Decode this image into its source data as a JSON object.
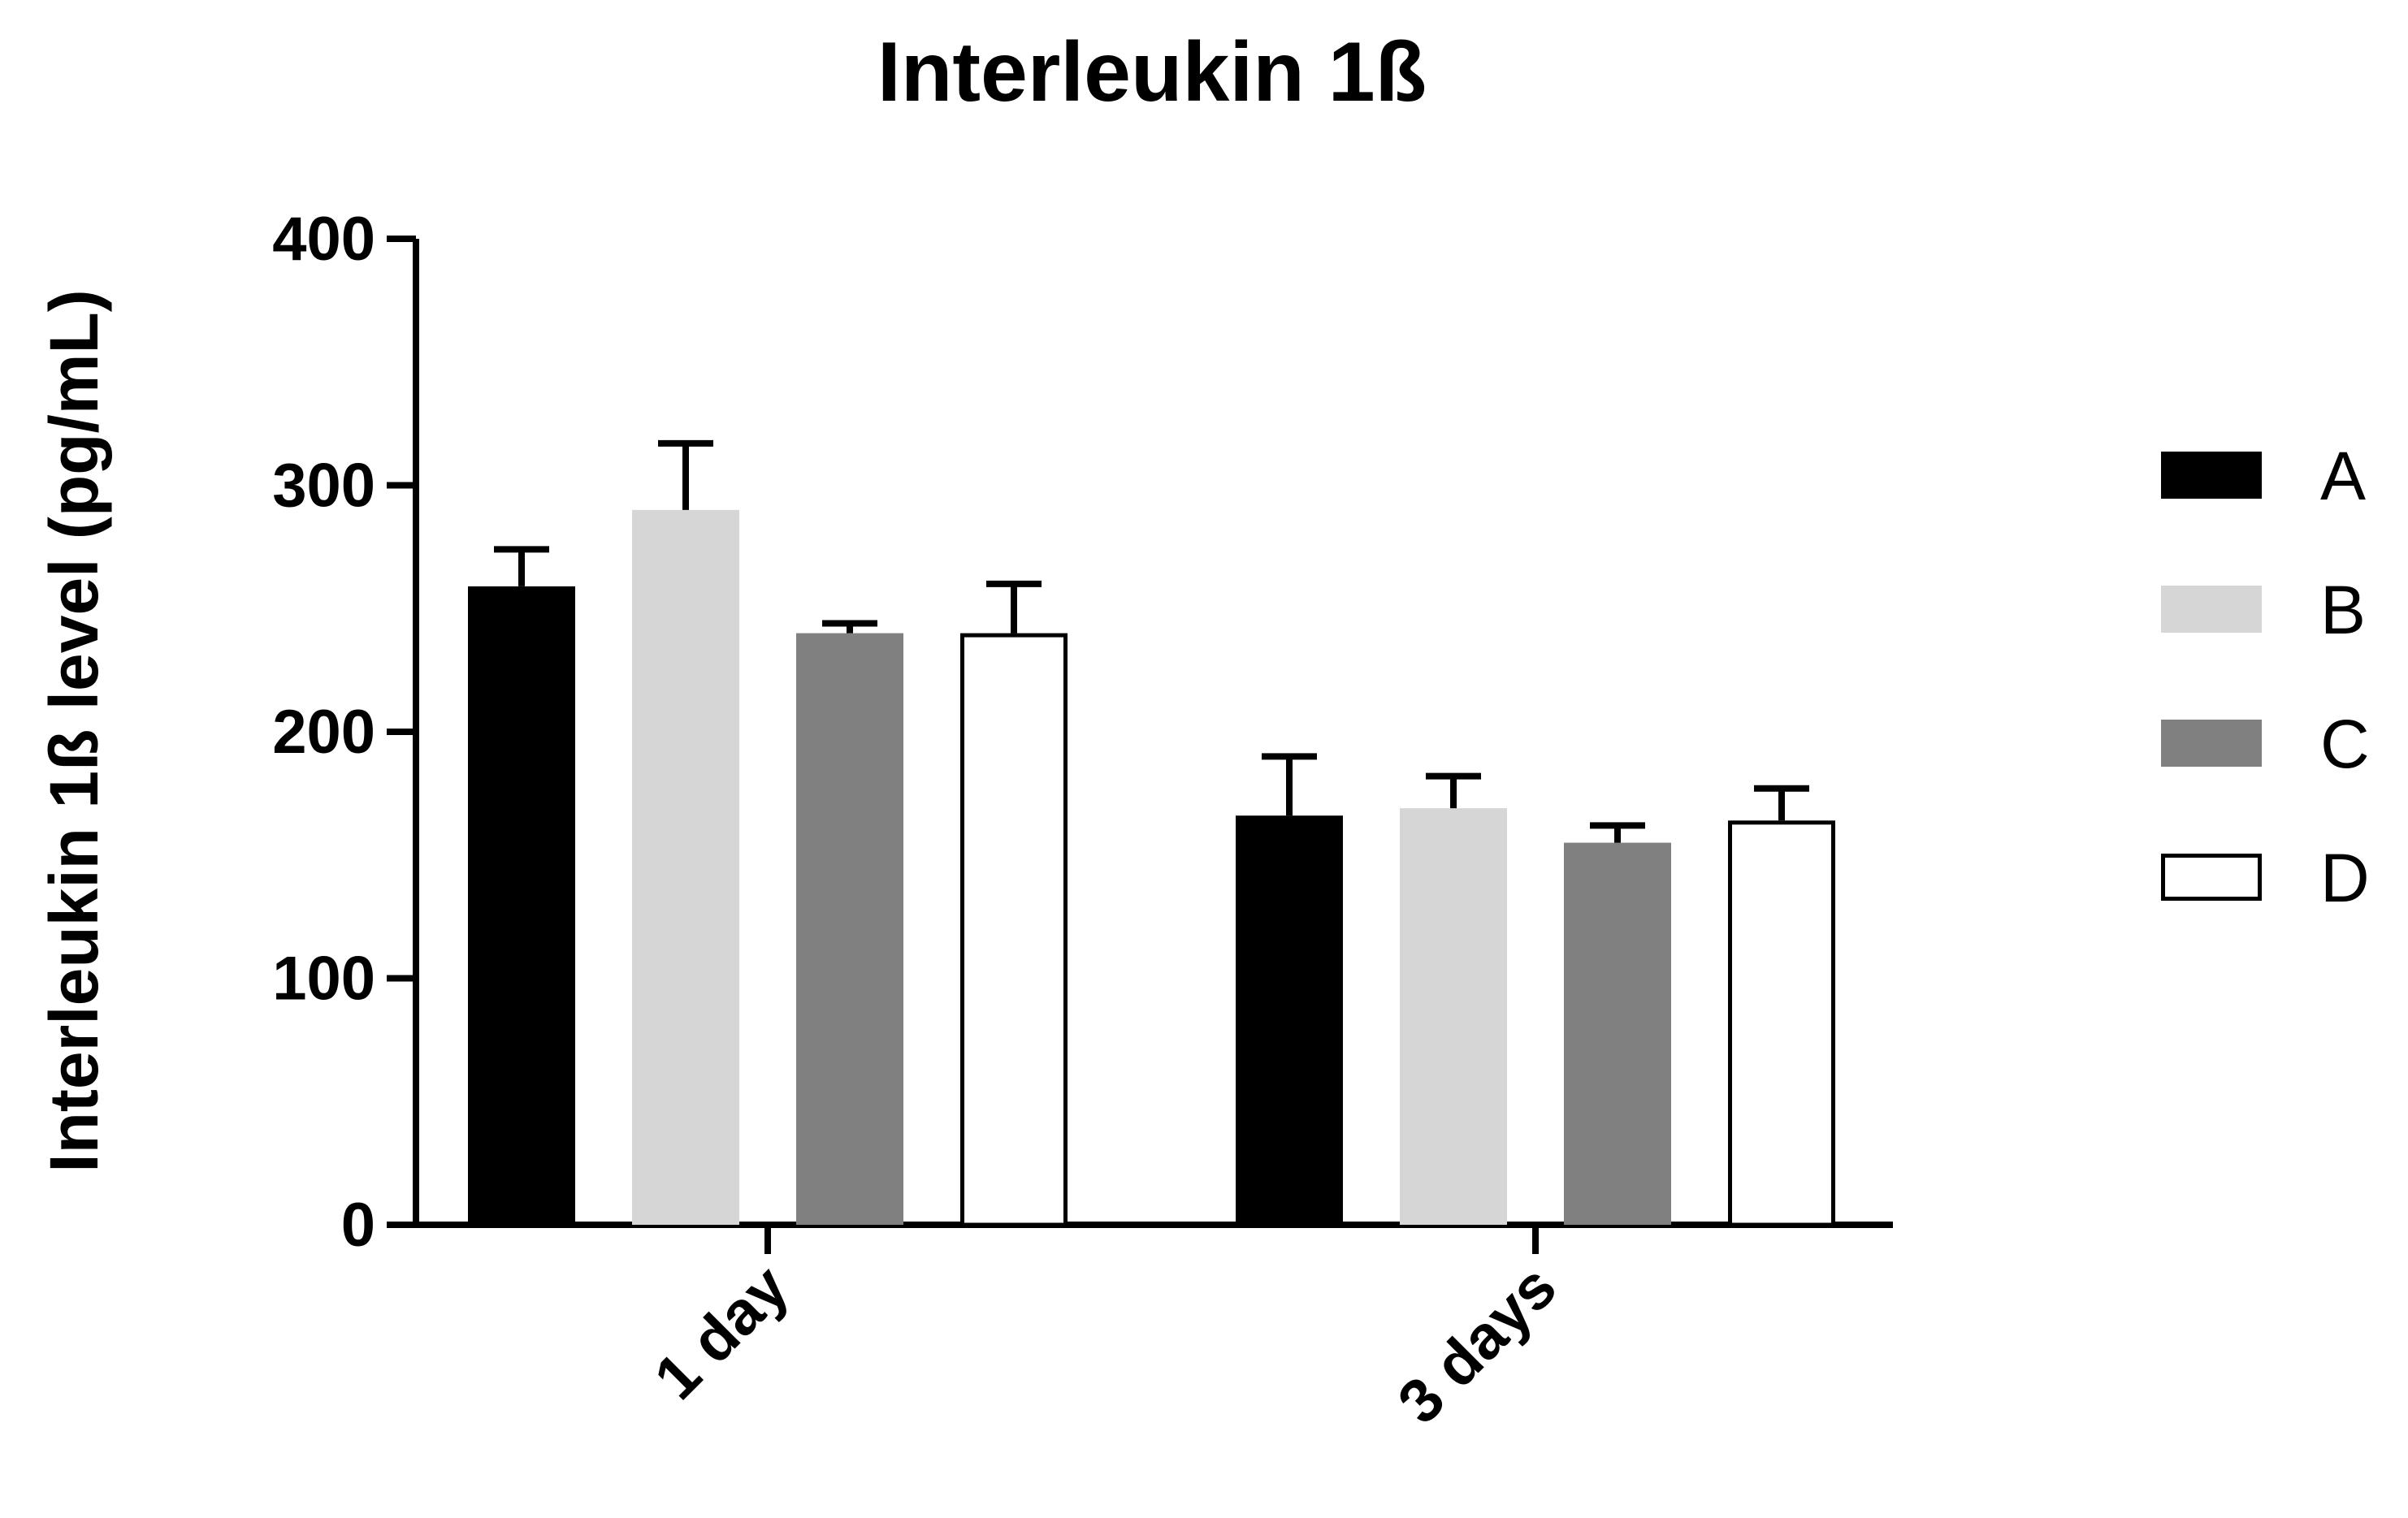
{
  "chart_data": {
    "type": "bar",
    "title": "Interleukin 1ß",
    "xlabel": "",
    "ylabel": "Interleukin 1ß level (pg/mL)",
    "ylim": [
      0,
      400
    ],
    "yticks": [
      "0",
      "100",
      "200",
      "300",
      "400"
    ],
    "categories": [
      "1 day",
      "3 days"
    ],
    "error_bars": "upper",
    "legend_position": "right",
    "grid": false,
    "series": [
      {
        "name": "A",
        "values": [
          259,
          166
        ],
        "errors": [
          15,
          24
        ],
        "fill": "#000000",
        "stroke": "#000000"
      },
      {
        "name": "B",
        "values": [
          290,
          169
        ],
        "errors": [
          27,
          13
        ],
        "fill": "#d6d6d6",
        "stroke": "#d6d6d6"
      },
      {
        "name": "C",
        "values": [
          240,
          155
        ],
        "errors": [
          4,
          7
        ],
        "fill": "#808080",
        "stroke": "#808080"
      },
      {
        "name": "D",
        "values": [
          240,
          164
        ],
        "errors": [
          20,
          13
        ],
        "fill": "#ffffff",
        "stroke": "#000000"
      }
    ]
  }
}
